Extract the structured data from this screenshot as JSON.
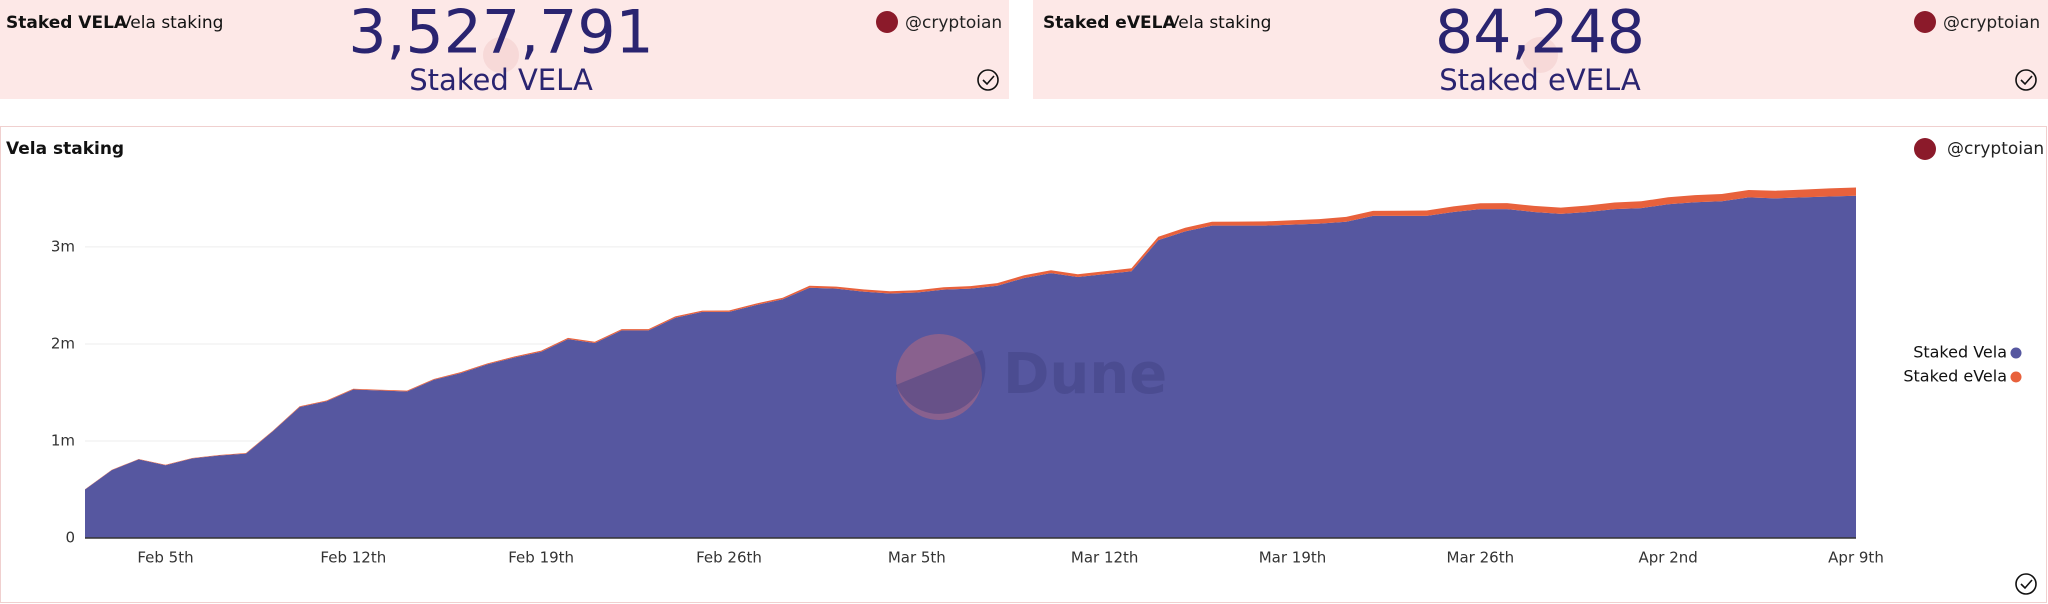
{
  "widgets": [
    {
      "title": "Staked VELA",
      "subtitle": "Vela staking",
      "value": "3,527,791",
      "label": "Staked VELA",
      "author": "@cryptoian"
    },
    {
      "title": "Staked eVELA",
      "subtitle": "Vela staking",
      "value": "84,248",
      "label": "Staked eVELA",
      "author": "@cryptoian"
    }
  ],
  "chart_data": {
    "type": "area",
    "stacked": true,
    "title": "Vela staking",
    "author": "@cryptoian",
    "watermark": "Dune",
    "legend": "right",
    "categories": [
      null,
      null,
      null,
      "Feb 5th",
      null,
      null,
      null,
      null,
      null,
      null,
      "Feb 12th",
      null,
      null,
      null,
      null,
      null,
      null,
      "Feb 19th",
      null,
      null,
      null,
      null,
      null,
      null,
      "Feb 26th",
      null,
      null,
      null,
      null,
      null,
      null,
      "Mar 5th",
      null,
      null,
      null,
      null,
      null,
      null,
      "Mar 12th",
      null,
      null,
      null,
      null,
      null,
      null,
      "Mar 19th",
      null,
      null,
      null,
      null,
      null,
      null,
      "Mar 26th",
      null,
      null,
      null,
      null,
      null,
      null,
      "Apr 2nd",
      null,
      null,
      null,
      null,
      null,
      null,
      "Apr 9th"
    ],
    "series": [
      {
        "name": "Staked Vela",
        "color": "#5657a0",
        "values": [
          500000,
          700000,
          810000,
          750000,
          820000,
          850000,
          870000,
          1100000,
          1350000,
          1410000,
          1530000,
          1520000,
          1510000,
          1630000,
          1700000,
          1790000,
          1860000,
          1920000,
          2050000,
          2010000,
          2140000,
          2140000,
          2270000,
          2330000,
          2330000,
          2400000,
          2460000,
          2580000,
          2570000,
          2540000,
          2520000,
          2530000,
          2560000,
          2570000,
          2600000,
          2680000,
          2730000,
          2690000,
          2720000,
          2750000,
          3070000,
          3160000,
          3220000,
          3220000,
          3220000,
          3230000,
          3240000,
          3260000,
          3320000,
          3320000,
          3320000,
          3360000,
          3390000,
          3390000,
          3360000,
          3340000,
          3360000,
          3390000,
          3400000,
          3440000,
          3460000,
          3470000,
          3510000,
          3500000,
          3510000,
          3520000,
          3527791
        ]
      },
      {
        "name": "Staked eVela",
        "color": "#e8613c",
        "values": [
          3000,
          3000,
          4000,
          4000,
          5000,
          5000,
          6000,
          6000,
          7000,
          7000,
          8000,
          8000,
          9000,
          9000,
          10000,
          10000,
          11000,
          11000,
          12000,
          12000,
          13000,
          13000,
          14000,
          14000,
          15000,
          16000,
          17000,
          20000,
          21000,
          22000,
          23000,
          24000,
          25000,
          26000,
          27000,
          28000,
          29000,
          29000,
          30000,
          30000,
          35000,
          37000,
          39000,
          41000,
          43000,
          45000,
          47000,
          49000,
          51000,
          53000,
          55000,
          58000,
          60000,
          62000,
          63000,
          65000,
          67000,
          68000,
          70000,
          72000,
          74000,
          75000,
          77000,
          79000,
          81000,
          83000,
          84248
        ]
      }
    ],
    "ylim": [
      0,
      3700000
    ],
    "yticks": [
      0,
      {
        "value": 1000000,
        "label": "1m"
      },
      {
        "value": 2000000,
        "label": "2m"
      },
      {
        "value": 3000000,
        "label": "3m"
      }
    ],
    "grid": true
  }
}
